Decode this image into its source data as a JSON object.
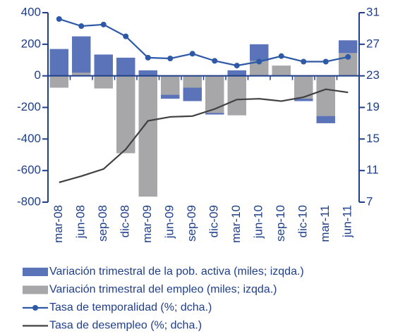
{
  "chart_data": {
    "type": "bar-line",
    "categories": [
      "mar-08",
      "jun-08",
      "sep-08",
      "dic-08",
      "mar-09",
      "jun-09",
      "sep-09",
      "dic-09",
      "mar-10",
      "jun-10",
      "sep-10",
      "dic-10",
      "mar-11",
      "jun-11"
    ],
    "series": [
      {
        "name": "Variación trimestral de la pob. activa (miles; izqda.)",
        "type": "bar",
        "color": "#5b74b9",
        "values": [
          170,
          250,
          135,
          115,
          35,
          -145,
          -160,
          -245,
          35,
          200,
          40,
          -160,
          -300,
          225
        ]
      },
      {
        "name": "Variación trimestral del empleo (miles; izqda.)",
        "type": "bar",
        "color": "#a7a7a9",
        "values": [
          -75,
          20,
          -80,
          -490,
          -765,
          -120,
          -75,
          -235,
          -250,
          95,
          65,
          -145,
          -255,
          145
        ]
      },
      {
        "name": "Tasa de temporalidad (%; dcha.)",
        "type": "line",
        "axis": "y2",
        "color": "#2e59a7",
        "markers": true,
        "values": [
          30.2,
          29.3,
          29.5,
          28.0,
          25.3,
          25.2,
          25.8,
          24.9,
          24.3,
          24.8,
          25.5,
          24.8,
          24.8,
          25.4
        ]
      },
      {
        "name": "Tasa de desempleo (%; dcha.)",
        "type": "line",
        "axis": "y2",
        "color": "#404040",
        "markers": false,
        "values": [
          9.5,
          10.3,
          11.2,
          13.7,
          17.3,
          17.8,
          17.9,
          18.8,
          20.0,
          20.1,
          19.8,
          20.3,
          21.3,
          20.9
        ]
      }
    ],
    "ylim": [
      -800,
      400
    ],
    "yticks": [
      -800,
      -600,
      -400,
      -200,
      0,
      200,
      400
    ],
    "y2lim": [
      7,
      31
    ],
    "y2ticks": [
      7,
      11,
      15,
      19,
      23,
      27,
      31
    ],
    "axis_color": "#1f3f8a"
  }
}
